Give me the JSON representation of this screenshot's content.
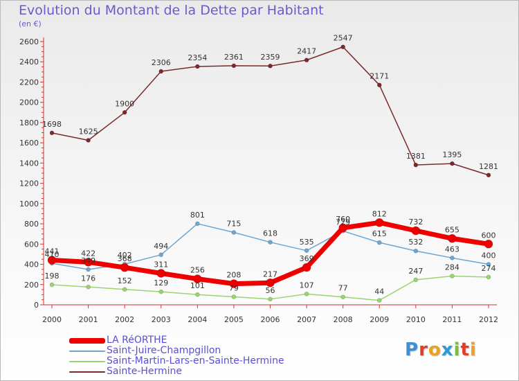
{
  "chart": {
    "title": "Evolution du Montant de la Dette par Habitant",
    "unit": "(en €)"
  },
  "logo": {
    "text": "Proxiti",
    "letters": [
      {
        "ch": "P",
        "color": "#3a8fd8"
      },
      {
        "ch": "r",
        "color": "#e23c2c"
      },
      {
        "ch": "o",
        "color": "#f0a020"
      },
      {
        "ch": "x",
        "color": "#2f9ad8"
      },
      {
        "ch": "i",
        "color": "#7abf3a"
      },
      {
        "ch": "t",
        "color": "#e23c2c"
      },
      {
        "ch": "i",
        "color": "#f0a020"
      }
    ]
  },
  "chart_data": {
    "type": "line",
    "title": "Evolution du Montant de la Dette par Habitant",
    "ylabel": "(en €)",
    "xlabel": "",
    "categories": [
      "2000",
      "2001",
      "2002",
      "2003",
      "2004",
      "2005",
      "2006",
      "2007",
      "2008",
      "2009",
      "2010",
      "2011",
      "2012"
    ],
    "ylim": [
      0,
      2600
    ],
    "yticks": [
      0,
      200,
      400,
      600,
      800,
      1000,
      1200,
      1400,
      1600,
      1800,
      2000,
      2200,
      2400,
      2600
    ],
    "grid": false,
    "legend_position": "bottom-left",
    "series": [
      {
        "name": "LA RéORTHE",
        "color": "#ee0000",
        "width": 7,
        "marker_r": 6,
        "values": [
          441,
          422,
          368,
          311,
          256,
          208,
          217,
          369,
          760,
          812,
          732,
          655,
          600
        ]
      },
      {
        "name": "Saint-Juire-Champgillon",
        "color": "#6fa5cf",
        "width": 1.5,
        "marker_r": 3,
        "values": [
          410,
          349,
          402,
          494,
          801,
          715,
          618,
          535,
          729,
          615,
          532,
          463,
          400
        ]
      },
      {
        "name": "Saint-Martin-Lars-en-Sainte-Hermine",
        "color": "#99d46f",
        "width": 1.5,
        "marker_r": 3,
        "values": [
          198,
          176,
          152,
          129,
          101,
          79,
          56,
          107,
          77,
          44,
          247,
          284,
          274
        ]
      },
      {
        "name": "Sainte-Hermine",
        "color": "#7a2a2a",
        "width": 1.5,
        "marker_r": 3,
        "values": [
          1698,
          1625,
          1900,
          2306,
          2354,
          2361,
          2359,
          2417,
          2547,
          2171,
          1381,
          1395,
          1281
        ]
      }
    ]
  }
}
